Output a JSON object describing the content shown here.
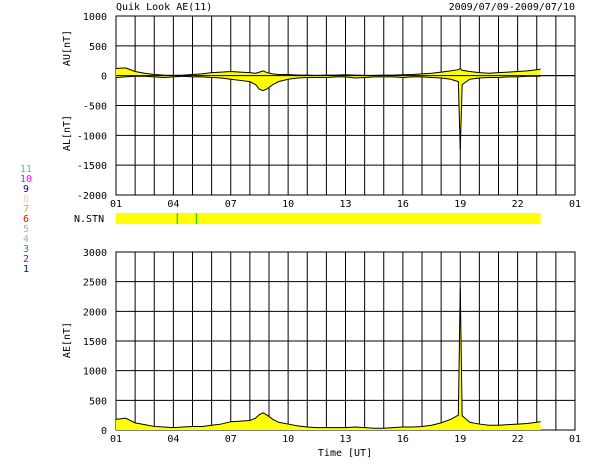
{
  "header": {
    "title": "Quik Look AE(11)",
    "date_range": "2009/07/09-2009/07/10"
  },
  "colors": {
    "fill": "#ffff00",
    "line": "#000000",
    "grid": "#000000",
    "station_marker": "#00c000"
  },
  "station_legend": [
    {
      "label": "11",
      "color": "#00e0e0"
    },
    {
      "label": "10",
      "color": "#ff00ff"
    },
    {
      "label": "9",
      "color": "#0000c0"
    },
    {
      "label": "8",
      "color": "#ffd0a0"
    },
    {
      "label": "7",
      "color": "#c0c000"
    },
    {
      "label": "6",
      "color": "#ff0000"
    },
    {
      "label": "5",
      "color": "#b0b0b0"
    },
    {
      "label": "4",
      "color": "#b0b0b0"
    },
    {
      "label": "3",
      "color": "#00a0a0"
    },
    {
      "label": "2",
      "color": "#a000a0"
    },
    {
      "label": "1",
      "color": "#0000a0"
    }
  ],
  "chart_data": [
    {
      "type": "area",
      "panel": "AU/AL",
      "ylabel_top": "AU[nT]",
      "ylabel_bottom": "AL[nT]",
      "ylim": [
        -2000,
        1000
      ],
      "yticks": [
        "1000",
        "500",
        "0",
        "-500",
        "-1000",
        "-1500",
        "-2000"
      ],
      "xlim": [
        1,
        25
      ],
      "xticks": [
        "01",
        "04",
        "07",
        "10",
        "13",
        "16",
        "19",
        "22",
        "01"
      ],
      "grid": true,
      "x_hours": [
        1,
        1.5,
        2,
        2.5,
        3,
        3.5,
        4,
        4.5,
        5,
        5.5,
        6,
        6.5,
        7,
        7.5,
        8,
        8.3,
        8.5,
        8.7,
        8.9,
        9.2,
        9.5,
        10,
        10.5,
        11,
        11.5,
        12,
        12.5,
        13,
        13.5,
        14,
        14.5,
        15,
        15.5,
        16,
        16.5,
        17,
        17.5,
        18,
        18.5,
        18.9,
        19,
        19.1,
        19.5,
        20,
        20.5,
        21,
        21.5,
        22,
        22.5,
        23,
        23.2
      ],
      "au": [
        120,
        130,
        70,
        40,
        20,
        10,
        5,
        10,
        20,
        30,
        50,
        60,
        70,
        60,
        50,
        40,
        60,
        80,
        50,
        30,
        20,
        20,
        10,
        10,
        5,
        10,
        10,
        15,
        10,
        5,
        5,
        10,
        10,
        15,
        20,
        30,
        40,
        60,
        80,
        100,
        120,
        90,
        70,
        50,
        40,
        50,
        60,
        70,
        80,
        100,
        110
      ],
      "al": [
        -30,
        -20,
        -10,
        -10,
        -20,
        -30,
        -20,
        -10,
        -20,
        -20,
        -30,
        -40,
        -60,
        -80,
        -100,
        -150,
        -230,
        -250,
        -220,
        -150,
        -100,
        -60,
        -40,
        -30,
        -30,
        -30,
        -20,
        -20,
        -40,
        -30,
        -20,
        -20,
        -20,
        -30,
        -20,
        -20,
        -30,
        -40,
        -60,
        -100,
        -1250,
        -150,
        -60,
        -40,
        -30,
        -30,
        -20,
        -20,
        -10,
        -10,
        -10
      ]
    },
    {
      "type": "bar",
      "panel": "N.STN",
      "label": "N.STN",
      "xlim": [
        1,
        25
      ],
      "x_start": 1,
      "x_end": 23.2,
      "markers_x": [
        4.2,
        5.2
      ]
    },
    {
      "type": "area",
      "panel": "AE",
      "ylabel": "AE[nT]",
      "xlabel": "Time [UT]",
      "ylim": [
        0,
        3000
      ],
      "yticks": [
        "3000",
        "2500",
        "2000",
        "1500",
        "1000",
        "500",
        "0"
      ],
      "xlim": [
        1,
        25
      ],
      "xticks": [
        "01",
        "04",
        "07",
        "10",
        "13",
        "16",
        "19",
        "22",
        "01"
      ],
      "grid": true,
      "x_hours": [
        1,
        1.5,
        2,
        2.5,
        3,
        3.5,
        4,
        4.5,
        5,
        5.5,
        6,
        6.5,
        7,
        7.5,
        8,
        8.3,
        8.5,
        8.7,
        8.9,
        9.2,
        9.5,
        10,
        10.5,
        11,
        11.5,
        12,
        12.5,
        13,
        13.5,
        14,
        14.5,
        15,
        15.5,
        16,
        16.5,
        17,
        17.5,
        18,
        18.5,
        18.9,
        19,
        19.1,
        19.5,
        20,
        20.5,
        21,
        21.5,
        22,
        22.5,
        23,
        23.2
      ],
      "values": [
        180,
        200,
        120,
        90,
        60,
        50,
        40,
        50,
        60,
        60,
        80,
        100,
        140,
        150,
        160,
        200,
        260,
        290,
        250,
        180,
        130,
        100,
        70,
        50,
        40,
        40,
        40,
        40,
        50,
        40,
        30,
        30,
        40,
        50,
        50,
        60,
        80,
        120,
        180,
        250,
        2400,
        240,
        130,
        100,
        80,
        80,
        90,
        100,
        110,
        130,
        140
      ]
    }
  ]
}
